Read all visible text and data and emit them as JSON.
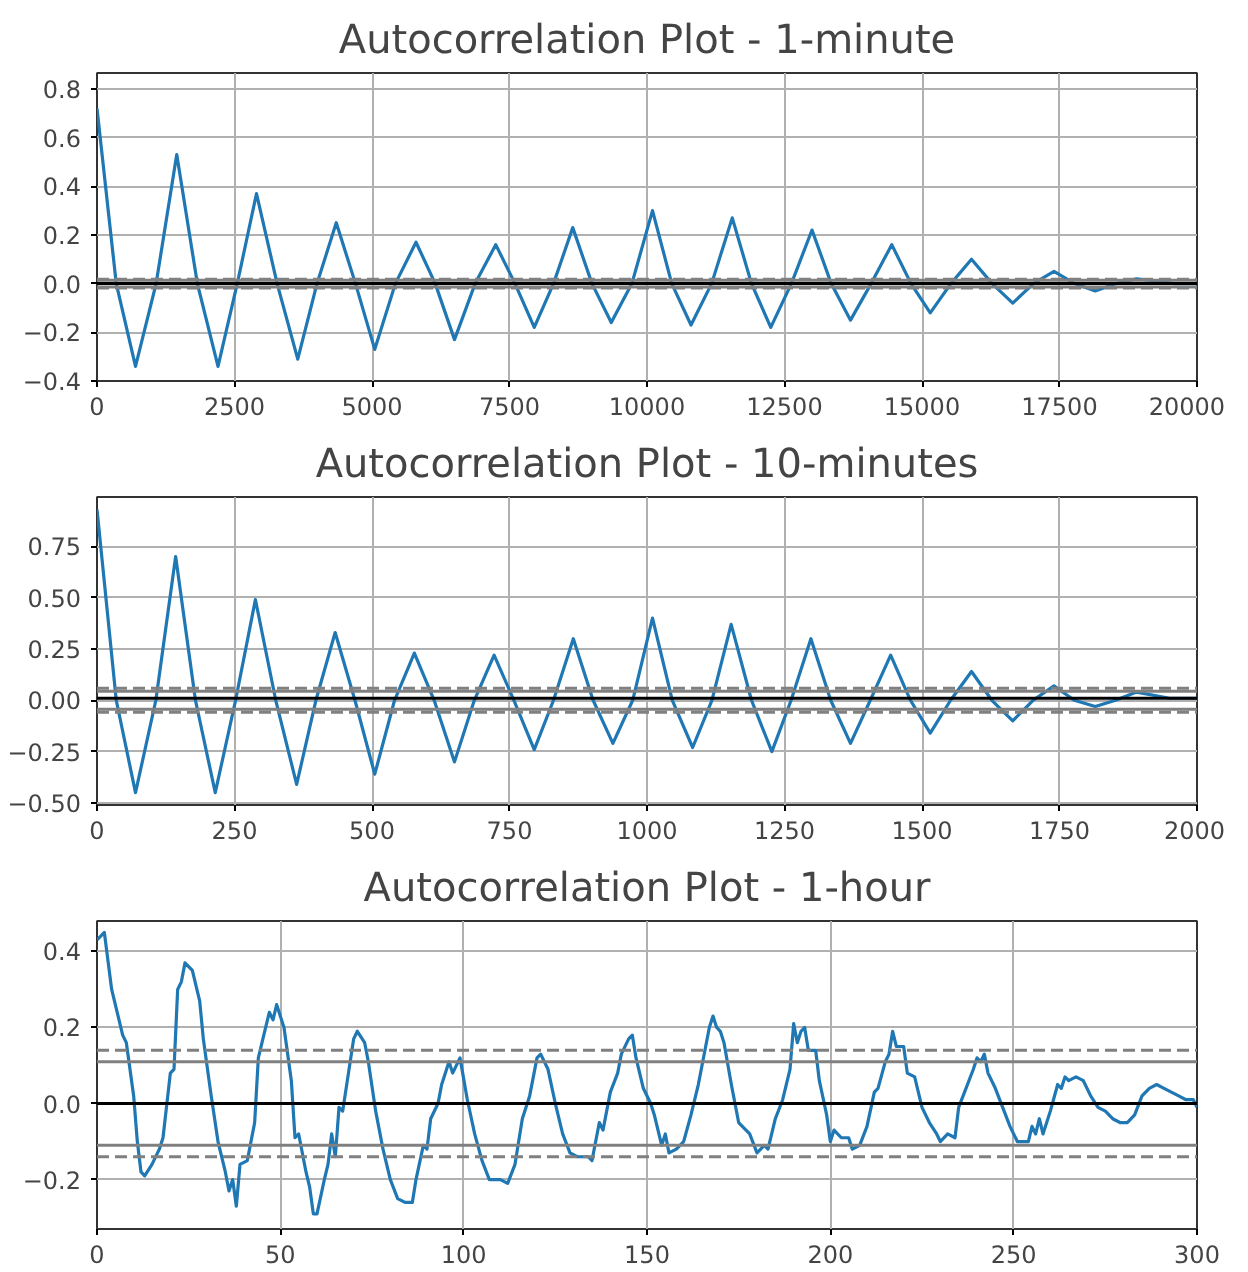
{
  "chart_data": [
    {
      "type": "line",
      "title": "Autocorrelation Plot - 1-minute",
      "grid": true,
      "xlim": [
        0,
        20000
      ],
      "ylim": [
        -0.4,
        0.865
      ],
      "xticks": [
        0,
        2500,
        5000,
        7500,
        10000,
        12500,
        15000,
        17500,
        20000
      ],
      "yticks": [
        {
          "value": -0.4,
          "label": "−0.4"
        },
        {
          "value": -0.2,
          "label": "−0.2"
        },
        {
          "value": 0,
          "label": "0.0"
        },
        {
          "value": 0.2,
          "label": "0.2"
        },
        {
          "value": 0.4,
          "label": "0.4"
        },
        {
          "value": 0.6,
          "label": "0.6"
        },
        {
          "value": 0.8,
          "label": "0.8"
        }
      ],
      "x": [
        0,
        350,
        700,
        1075,
        1450,
        1825,
        2200,
        2550,
        2900,
        3275,
        3650,
        4000,
        4350,
        4700,
        5050,
        5425,
        5800,
        6150,
        6500,
        6875,
        7250,
        7600,
        7950,
        8300,
        8650,
        9000,
        9350,
        9725,
        10100,
        10450,
        10800,
        11175,
        11550,
        11900,
        12250,
        12625,
        13000,
        13350,
        13700,
        14075,
        14450,
        14800,
        15150,
        15525,
        15900,
        16275,
        16650,
        17025,
        17400,
        17775,
        18150,
        18525,
        18900,
        19600,
        20000
      ],
      "series": [
        {
          "color": "#1f77b4",
          "values": [
            0.72,
            0,
            -0.34,
            0,
            0.53,
            0,
            -0.34,
            0,
            0.37,
            0,
            -0.31,
            0,
            0.25,
            0,
            -0.27,
            0,
            0.17,
            0,
            -0.23,
            0,
            0.16,
            0,
            -0.18,
            0,
            0.23,
            0,
            -0.16,
            0,
            0.3,
            0,
            -0.17,
            0,
            0.27,
            0,
            -0.18,
            0,
            0.22,
            0,
            -0.15,
            0,
            0.16,
            0,
            -0.12,
            0,
            0.1,
            0,
            -0.08,
            0,
            0.05,
            0,
            -0.03,
            0,
            0.02,
            0,
            0
          ]
        }
      ],
      "ref_lines": [
        {
          "axis": "y",
          "value": 0.014,
          "color": "#808080",
          "line_style": "solid"
        },
        {
          "axis": "y",
          "value": -0.014,
          "color": "#808080",
          "line_style": "solid"
        },
        {
          "axis": "y",
          "value": 0.018,
          "color": "#808080",
          "line_style": "dashed"
        },
        {
          "axis": "y",
          "value": -0.018,
          "color": "#808080",
          "line_style": "dashed"
        },
        {
          "axis": "y",
          "value": 0,
          "color": "#000000",
          "line_style": "solid"
        }
      ]
    },
    {
      "type": "line",
      "title": "Autocorrelation Plot - 10-minutes",
      "grid": true,
      "xlim": [
        0,
        2000
      ],
      "ylim": [
        -0.51,
        0.99
      ],
      "xticks": [
        0,
        250,
        500,
        750,
        1000,
        1250,
        1500,
        1750,
        2000
      ],
      "yticks": [
        {
          "value": -0.5,
          "label": "−0.50"
        },
        {
          "value": -0.25,
          "label": "−0.25"
        },
        {
          "value": 0,
          "label": "0.00"
        },
        {
          "value": 0.25,
          "label": "0.25"
        },
        {
          "value": 0.5,
          "label": "0.50"
        },
        {
          "value": 0.75,
          "label": "0.75"
        }
      ],
      "x": [
        0,
        35,
        70,
        107,
        143,
        179,
        215,
        252,
        288,
        325,
        363,
        398,
        433,
        469,
        505,
        541,
        577,
        613,
        650,
        686,
        722,
        758,
        795,
        830,
        866,
        902,
        938,
        974,
        1010,
        1046,
        1083,
        1118,
        1153,
        1190,
        1227,
        1262,
        1298,
        1334,
        1370,
        1406,
        1443,
        1479,
        1515,
        1552,
        1590,
        1627,
        1665,
        1702,
        1740,
        1777,
        1815,
        1852,
        1890,
        1950,
        2000
      ],
      "series": [
        {
          "color": "#1f77b4",
          "values": [
            0.93,
            0,
            -0.45,
            0,
            0.7,
            0,
            -0.45,
            0,
            0.49,
            0,
            -0.41,
            0,
            0.33,
            0,
            -0.36,
            0,
            0.23,
            0,
            -0.3,
            0,
            0.22,
            0,
            -0.24,
            0,
            0.3,
            0,
            -0.21,
            0,
            0.4,
            0,
            -0.23,
            0,
            0.37,
            0,
            -0.25,
            0,
            0.3,
            0,
            -0.21,
            0,
            0.22,
            0,
            -0.16,
            0,
            0.14,
            0,
            -0.1,
            0,
            0.07,
            0,
            -0.03,
            0,
            0.04,
            0.01,
            0.01
          ]
        }
      ],
      "ref_lines": [
        {
          "axis": "y",
          "value": 0.044,
          "color": "#808080",
          "line_style": "solid"
        },
        {
          "axis": "y",
          "value": -0.044,
          "color": "#808080",
          "line_style": "solid"
        },
        {
          "axis": "y",
          "value": 0.058,
          "color": "#808080",
          "line_style": "dashed"
        },
        {
          "axis": "y",
          "value": -0.058,
          "color": "#808080",
          "line_style": "dashed"
        },
        {
          "axis": "y",
          "value": 0.01,
          "color": "#000000",
          "line_style": "solid"
        }
      ]
    },
    {
      "type": "line",
      "title": "Autocorrelation Plot - 1-hour",
      "grid": true,
      "xlim": [
        0,
        300
      ],
      "ylim": [
        -0.33,
        0.48
      ],
      "xticks": [
        0,
        50,
        100,
        150,
        200,
        250,
        300
      ],
      "yticks": [
        {
          "value": -0.2,
          "label": "−0.2"
        },
        {
          "value": 0,
          "label": "0.0"
        },
        {
          "value": 0.2,
          "label": "0.2"
        },
        {
          "value": 0.4,
          "label": "0.4"
        }
      ],
      "x": [
        0,
        2,
        4,
        6,
        7,
        8,
        10,
        11,
        12,
        13,
        15,
        17,
        18,
        20,
        21,
        22,
        23,
        24,
        26,
        28,
        29,
        31,
        33,
        35,
        36,
        37,
        38,
        39,
        41,
        43,
        44,
        46,
        47,
        48,
        49,
        51,
        53,
        54,
        55,
        57,
        58,
        59,
        60,
        62,
        63,
        64,
        65,
        66,
        67,
        70,
        71,
        73,
        74,
        76,
        78,
        80,
        82,
        84,
        86,
        87,
        89,
        90,
        91,
        93,
        94,
        96,
        97,
        99,
        101,
        103,
        105,
        107,
        110,
        112,
        114,
        116,
        118,
        120,
        121,
        123,
        125,
        127,
        129,
        131,
        134,
        135,
        137,
        138,
        140,
        142,
        143,
        145,
        146,
        147,
        149,
        151,
        152,
        154,
        155,
        156,
        158,
        160,
        162,
        164,
        166,
        167,
        168,
        169,
        170,
        171,
        173,
        175,
        178,
        180,
        182,
        183,
        185,
        187,
        189,
        190,
        191,
        192,
        193,
        194,
        196,
        197,
        199,
        200,
        201,
        203,
        205,
        206,
        208,
        210,
        212,
        213,
        215,
        216,
        217,
        218,
        220,
        221,
        223,
        225,
        227,
        229,
        230,
        232,
        234,
        235,
        237,
        239,
        240,
        241,
        242,
        243,
        245,
        247,
        249,
        251,
        254,
        255,
        256,
        257,
        258,
        260,
        262,
        263,
        264,
        265,
        267,
        269,
        271,
        273,
        275,
        277,
        279,
        281,
        283,
        285,
        287,
        289,
        291,
        293,
        295,
        297,
        299,
        300
      ],
      "series": [
        {
          "color": "#1f77b4",
          "values": [
            0.43,
            0.45,
            0.3,
            0.22,
            0.18,
            0.16,
            0.02,
            -0.1,
            -0.18,
            -0.19,
            -0.16,
            -0.12,
            -0.09,
            0.08,
            0.09,
            0.3,
            0.32,
            0.37,
            0.35,
            0.27,
            0.17,
            0.03,
            -0.1,
            -0.18,
            -0.23,
            -0.2,
            -0.27,
            -0.16,
            -0.15,
            -0.05,
            0.12,
            0.2,
            0.24,
            0.22,
            0.26,
            0.2,
            0.06,
            -0.09,
            -0.08,
            -0.18,
            -0.22,
            -0.29,
            -0.29,
            -0.2,
            -0.16,
            -0.08,
            -0.14,
            -0.01,
            -0.02,
            0.17,
            0.19,
            0.16,
            0.11,
            -0.02,
            -0.12,
            -0.2,
            -0.25,
            -0.26,
            -0.26,
            -0.2,
            -0.11,
            -0.12,
            -0.04,
            0.0,
            0.05,
            0.11,
            0.08,
            0.12,
            0.01,
            -0.08,
            -0.15,
            -0.2,
            -0.2,
            -0.21,
            -0.16,
            -0.04,
            0.02,
            0.12,
            0.13,
            0.09,
            0.0,
            -0.08,
            -0.13,
            -0.14,
            -0.14,
            -0.15,
            -0.05,
            -0.07,
            0.03,
            0.08,
            0.13,
            0.17,
            0.18,
            0.12,
            0.04,
            0.0,
            -0.03,
            -0.11,
            -0.08,
            -0.13,
            -0.12,
            -0.1,
            -0.03,
            0.05,
            0.15,
            0.2,
            0.23,
            0.2,
            0.19,
            0.16,
            0.05,
            -0.05,
            -0.08,
            -0.13,
            -0.11,
            -0.12,
            -0.04,
            0.01,
            0.09,
            0.21,
            0.16,
            0.19,
            0.2,
            0.14,
            0.14,
            0.06,
            -0.03,
            -0.1,
            -0.07,
            -0.09,
            -0.09,
            -0.12,
            -0.11,
            -0.06,
            0.03,
            0.04,
            0.11,
            0.13,
            0.19,
            0.15,
            0.15,
            0.08,
            0.07,
            -0.01,
            -0.05,
            -0.08,
            -0.1,
            -0.08,
            -0.09,
            -0.01,
            0.04,
            0.09,
            0.12,
            0.11,
            0.13,
            0.08,
            0.04,
            -0.01,
            -0.06,
            -0.1,
            -0.1,
            -0.06,
            -0.08,
            -0.04,
            -0.08,
            -0.02,
            0.05,
            0.04,
            0.07,
            0.06,
            0.07,
            0.06,
            0.02,
            -0.01,
            -0.02,
            -0.04,
            -0.05,
            -0.05,
            -0.03,
            0.02,
            0.04,
            0.05,
            0.04,
            0.03,
            0.02,
            0.01,
            0.01,
            -0.01
          ]
        }
      ],
      "ref_lines": [
        {
          "axis": "y",
          "value": 0.11,
          "color": "#808080",
          "line_style": "solid"
        },
        {
          "axis": "y",
          "value": -0.11,
          "color": "#808080",
          "line_style": "solid"
        },
        {
          "axis": "y",
          "value": 0.14,
          "color": "#808080",
          "line_style": "dashed"
        },
        {
          "axis": "y",
          "value": -0.14,
          "color": "#808080",
          "line_style": "dashed"
        },
        {
          "axis": "y",
          "value": 0,
          "color": "#000000",
          "line_style": "solid"
        }
      ]
    }
  ]
}
